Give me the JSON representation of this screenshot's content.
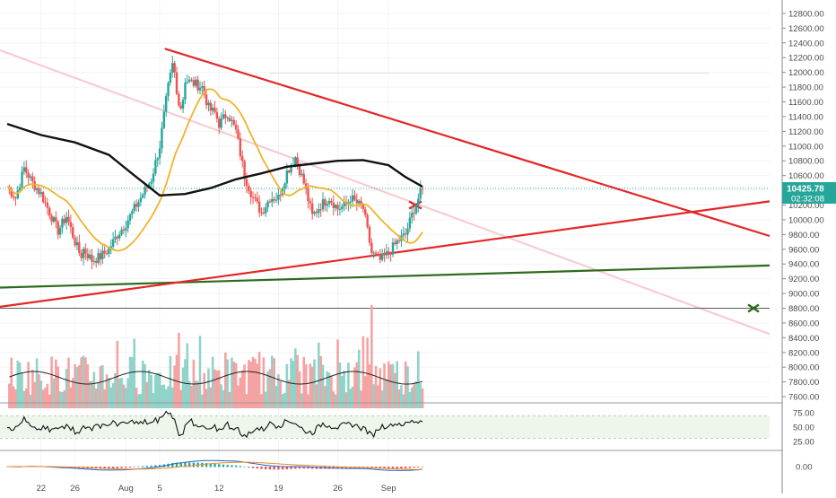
{
  "chart_data": {
    "type": "candlestick",
    "symbol": "",
    "price_axis": {
      "ticks": [
        "12800.00",
        "12600.00",
        "12400.00",
        "12200.00",
        "12000.00",
        "11800.00",
        "11600.00",
        "11400.00",
        "11200.00",
        "11000.00",
        "10800.00",
        "10600.00",
        "10400.00",
        "10200.00",
        "10000.00",
        "9800.00",
        "9600.00",
        "9400.00",
        "9200.00",
        "9000.00",
        "8800.00",
        "8600.00",
        "8400.00",
        "8200.00",
        "8000.00",
        "7800.00",
        "7600.00"
      ],
      "range": [
        7540,
        12860
      ]
    },
    "time_axis": {
      "ticks": [
        "22",
        "26",
        "Aug",
        "5",
        "12",
        "19",
        "26",
        "Sep"
      ]
    },
    "last_price": "10425.78",
    "countdown": "02:32:08",
    "candles_approx": [
      {
        "date": "Jul 22",
        "close": 10350
      },
      {
        "date": "Jul 24",
        "close": 9850
      },
      {
        "date": "Jul 26",
        "close": 9700
      },
      {
        "date": "Jul 28",
        "close": 9450
      },
      {
        "date": "Jul 31",
        "close": 9950
      },
      {
        "date": "Aug 3",
        "close": 10600
      },
      {
        "date": "Aug 6",
        "close": 11800
      },
      {
        "date": "Aug 9",
        "close": 11900
      },
      {
        "date": "Aug 12",
        "close": 11400
      },
      {
        "date": "Aug 15",
        "close": 10200
      },
      {
        "date": "Aug 19",
        "close": 10300
      },
      {
        "date": "Aug 20",
        "close": 10900
      },
      {
        "date": "Aug 22",
        "close": 10100
      },
      {
        "date": "Aug 26",
        "close": 10250
      },
      {
        "date": "Aug 29",
        "close": 9500
      },
      {
        "date": "Sep 1",
        "close": 9600
      },
      {
        "date": "Sep 3",
        "close": 10425.78
      }
    ],
    "rsi_axis": {
      "ticks": [
        "75.00",
        "50.00",
        "25.00"
      ]
    },
    "macd_axis": {
      "ticks": [
        "0.00"
      ]
    },
    "colors": {
      "up": "#26a69a",
      "down": "#ef5350",
      "ma_fast": "#f0b429",
      "ma_slow": "#111111",
      "trendline": "#e32727",
      "support": "#2e6b1e",
      "price_label": "#26a69a"
    },
    "grid": true
  }
}
